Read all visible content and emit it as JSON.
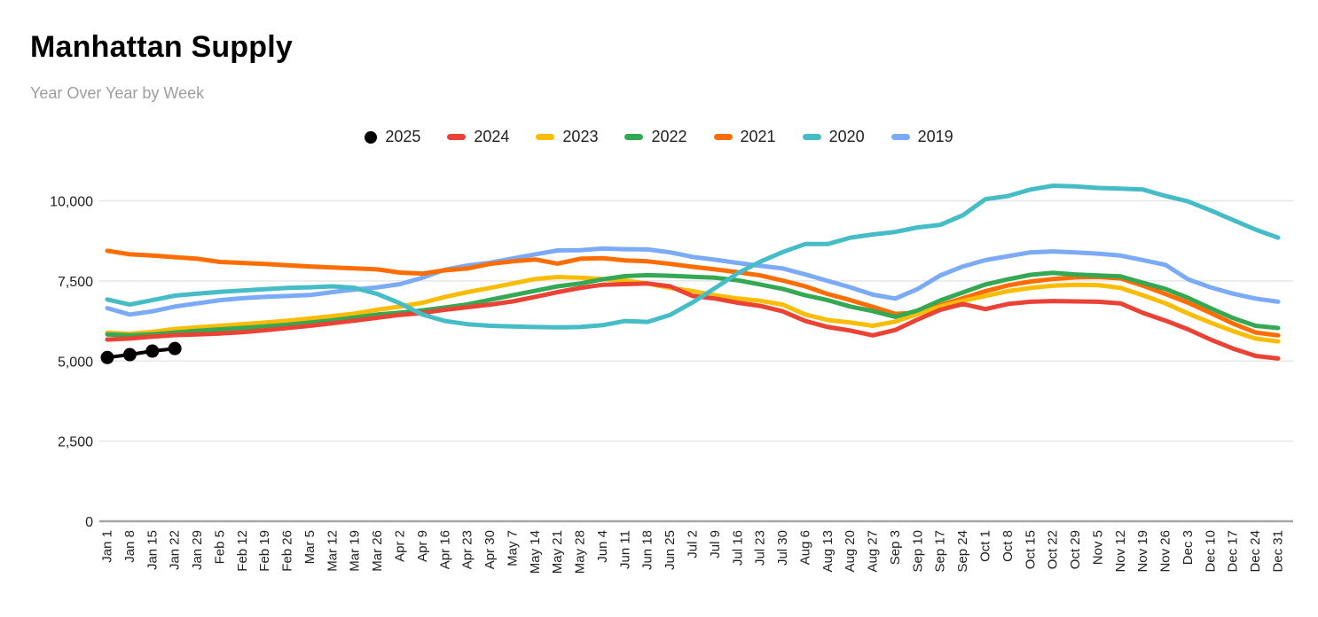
{
  "page": {
    "title": "Manhattan Supply",
    "subtitle": "Year Over Year by Week"
  },
  "chart_data": {
    "type": "line",
    "title": "Manhattan Supply",
    "subtitle": "Year Over Year by Week",
    "legend_position": "top",
    "grid": true,
    "axis_color": "#a6a6a6",
    "grid_color": "#e6e6e6",
    "y_ticks": [
      0,
      2500,
      5000,
      7500,
      10000
    ],
    "y_tick_labels": [
      "0",
      "2,500",
      "5,000",
      "7,500",
      "10,000"
    ],
    "ylim": [
      0,
      10500
    ],
    "categories": [
      "Jan 1",
      "Jan 8",
      "Jan 15",
      "Jan 22",
      "Jan 29",
      "Feb 5",
      "Feb 12",
      "Feb 19",
      "Feb 26",
      "Mar 5",
      "Mar 12",
      "Mar 19",
      "Mar 26",
      "Apr 2",
      "Apr 9",
      "Apr 16",
      "Apr 23",
      "Apr 30",
      "May 7",
      "May 14",
      "May 21",
      "May 28",
      "Jun 4",
      "Jun 11",
      "Jun 18",
      "Jun 25",
      "Jul 2",
      "Jul 9",
      "Jul 16",
      "Jul 23",
      "Jul 30",
      "Aug 6",
      "Aug 13",
      "Aug 20",
      "Aug 27",
      "Sep 3",
      "Sep 10",
      "Sep 17",
      "Sep 24",
      "Oct 1",
      "Oct 8",
      "Oct 15",
      "Oct 22",
      "Oct 29",
      "Nov 5",
      "Nov 12",
      "Nov 19",
      "Nov 26",
      "Dec 3",
      "Dec 10",
      "Dec 17",
      "Dec 24",
      "Dec 31"
    ],
    "series": [
      {
        "name": "2025",
        "color": "#000000",
        "marker": "circle",
        "values": [
          5110,
          5200,
          5310,
          5390
        ]
      },
      {
        "name": "2024",
        "color": "#ea4335",
        "marker": "none",
        "values": [
          5670,
          5700,
          5760,
          5810,
          5830,
          5860,
          5900,
          5960,
          6030,
          6100,
          6180,
          6260,
          6350,
          6440,
          6500,
          6600,
          6680,
          6760,
          6860,
          7000,
          7150,
          7280,
          7380,
          7400,
          7420,
          7330,
          7030,
          6950,
          6820,
          6720,
          6550,
          6250,
          6060,
          5950,
          5800,
          5970,
          6300,
          6600,
          6780,
          6620,
          6780,
          6850,
          6870,
          6860,
          6850,
          6800,
          6500,
          6260,
          5990,
          5670,
          5390,
          5160,
          5080
        ]
      },
      {
        "name": "2023",
        "color": "#fbbc04",
        "marker": "none",
        "values": [
          5880,
          5850,
          5910,
          6000,
          6050,
          6100,
          6150,
          6200,
          6260,
          6330,
          6400,
          6480,
          6600,
          6700,
          6820,
          7000,
          7150,
          7280,
          7420,
          7560,
          7620,
          7600,
          7560,
          7510,
          7420,
          7280,
          7180,
          7050,
          6950,
          6880,
          6760,
          6450,
          6280,
          6200,
          6100,
          6230,
          6470,
          6700,
          6880,
          7030,
          7180,
          7280,
          7350,
          7380,
          7370,
          7280,
          7050,
          6800,
          6480,
          6200,
          5930,
          5700,
          5610
        ]
      },
      {
        "name": "2022",
        "color": "#34a853",
        "marker": "none",
        "values": [
          5830,
          5800,
          5830,
          5890,
          5940,
          5990,
          6030,
          6080,
          6130,
          6200,
          6270,
          6360,
          6450,
          6510,
          6580,
          6670,
          6770,
          6910,
          7050,
          7190,
          7330,
          7420,
          7550,
          7650,
          7680,
          7660,
          7630,
          7600,
          7520,
          7390,
          7250,
          7050,
          6900,
          6700,
          6560,
          6380,
          6580,
          6890,
          7140,
          7390,
          7550,
          7690,
          7750,
          7700,
          7670,
          7640,
          7440,
          7250,
          6970,
          6650,
          6340,
          6100,
          6030
        ]
      },
      {
        "name": "2021",
        "color": "#ff6d01",
        "marker": "none",
        "values": [
          8440,
          8330,
          8290,
          8240,
          8190,
          8090,
          8060,
          8030,
          7990,
          7950,
          7920,
          7890,
          7860,
          7760,
          7730,
          7830,
          7890,
          8030,
          8110,
          8170,
          8040,
          8190,
          8210,
          8140,
          8110,
          8030,
          7940,
          7860,
          7770,
          7670,
          7510,
          7330,
          7090,
          6900,
          6690,
          6470,
          6510,
          6740,
          6960,
          7180,
          7360,
          7480,
          7560,
          7610,
          7620,
          7580,
          7350,
          7090,
          6820,
          6500,
          6170,
          5890,
          5800
        ]
      },
      {
        "name": "2020",
        "color": "#46bdc6",
        "marker": "none",
        "values": [
          6920,
          6760,
          6900,
          7040,
          7100,
          7160,
          7200,
          7240,
          7280,
          7300,
          7330,
          7280,
          7090,
          6800,
          6450,
          6250,
          6150,
          6100,
          6080,
          6060,
          6050,
          6060,
          6120,
          6250,
          6220,
          6440,
          6830,
          7280,
          7740,
          8100,
          8400,
          8650,
          8650,
          8850,
          8950,
          9030,
          9170,
          9250,
          9550,
          10050,
          10150,
          10350,
          10470,
          10450,
          10400,
          10380,
          10350,
          10150,
          9980,
          9700,
          9400,
          9100,
          8850
        ]
      },
      {
        "name": "2019",
        "color": "#7baaf7",
        "marker": "none",
        "values": [
          6650,
          6450,
          6550,
          6700,
          6800,
          6900,
          6960,
          7000,
          7030,
          7060,
          7150,
          7230,
          7300,
          7400,
          7600,
          7850,
          7980,
          8070,
          8200,
          8330,
          8450,
          8460,
          8510,
          8490,
          8480,
          8390,
          8250,
          8160,
          8060,
          7970,
          7890,
          7700,
          7500,
          7300,
          7070,
          6950,
          7250,
          7670,
          7950,
          8150,
          8270,
          8390,
          8420,
          8390,
          8350,
          8290,
          8150,
          8000,
          7550,
          7300,
          7100,
          6950,
          6850
        ]
      }
    ],
    "draw_order": [
      "2019",
      "2021",
      "2023",
      "2022",
      "2024",
      "2020",
      "2025"
    ]
  }
}
